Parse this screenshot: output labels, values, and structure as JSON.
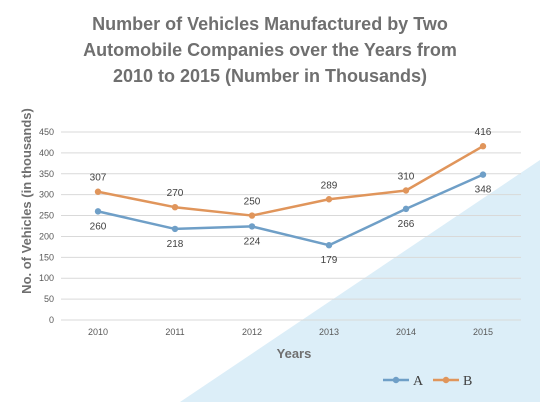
{
  "colors": {
    "series_a": "#6f9fc7",
    "series_b": "#e0955b",
    "grid": "#d9d9d9",
    "background_accent": "#dceef8",
    "title": "#6f6f6f"
  },
  "chart_data": {
    "type": "line",
    "title_lines": [
      "Number of Vehicles Manufactured by Two",
      "Automobile Companies over the Years from",
      "2010 to 2015  (Number in Thousands)"
    ],
    "xlabel": "Years",
    "ylabel": "No. of Vehicles (in thousands)",
    "categories": [
      "2010",
      "2011",
      "2012",
      "2013",
      "2014",
      "2015"
    ],
    "ylim": [
      0,
      450
    ],
    "yticks": [
      0,
      50,
      100,
      150,
      200,
      250,
      300,
      350,
      400,
      450
    ],
    "grid": true,
    "legend_position": "bottom-right",
    "series": [
      {
        "name": "A",
        "values": [
          260,
          218,
          224,
          179,
          266,
          348
        ]
      },
      {
        "name": "B",
        "values": [
          307,
          270,
          250,
          289,
          310,
          416
        ]
      }
    ]
  }
}
